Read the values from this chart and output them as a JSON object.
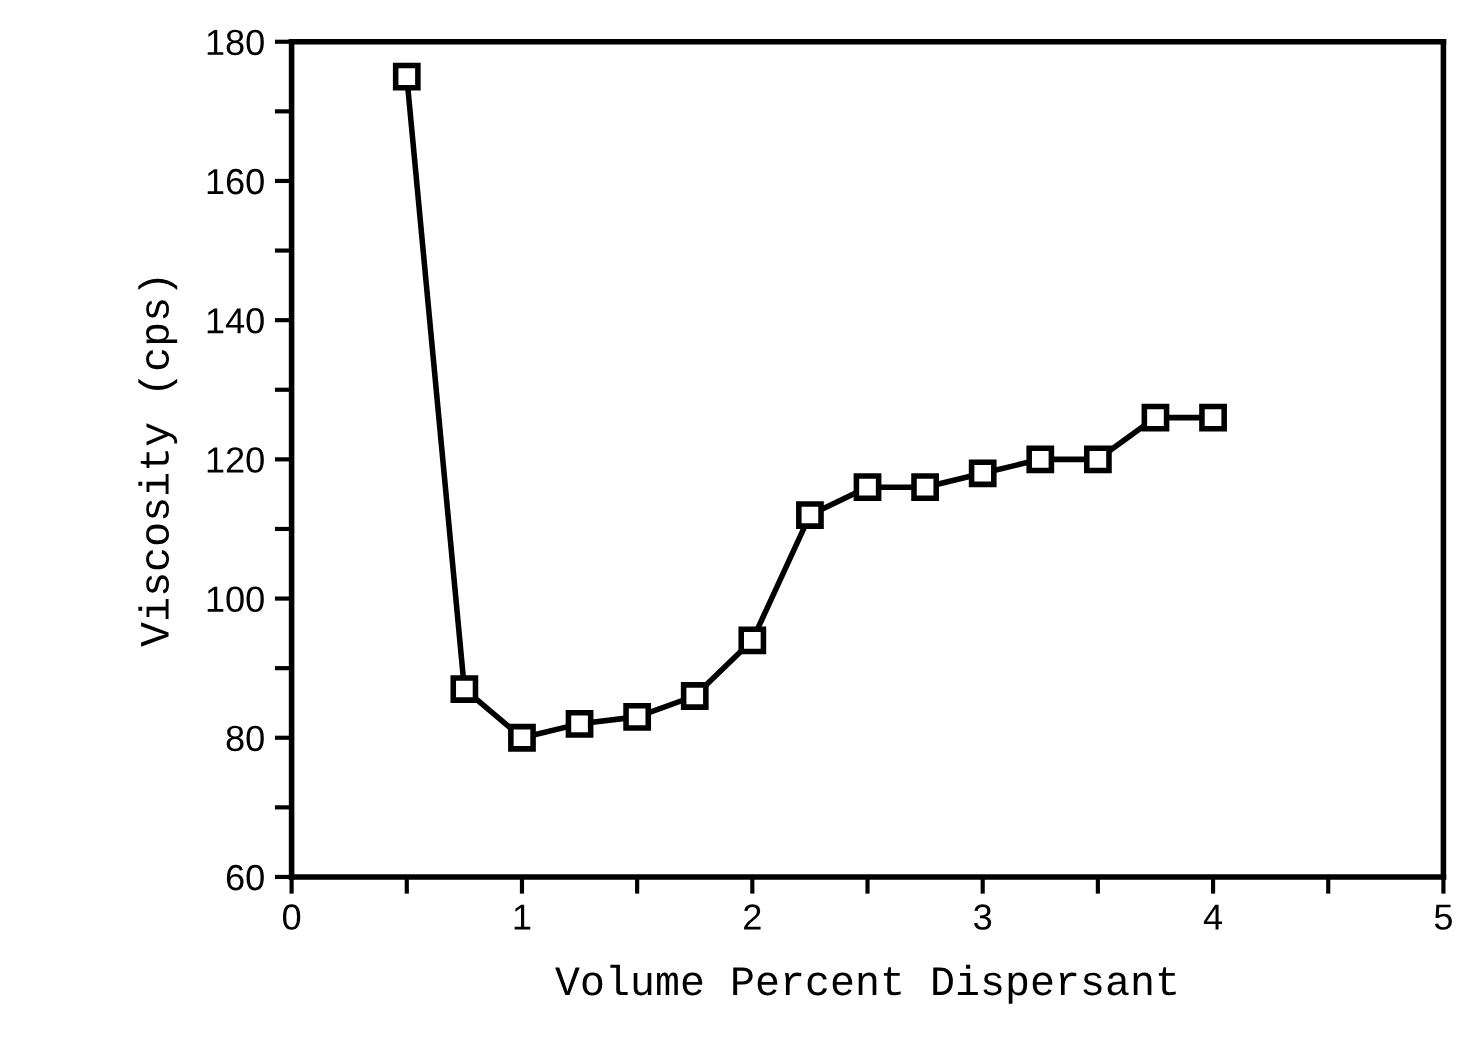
{
  "chart_data": {
    "type": "line",
    "xlabel": "Volume Percent Dispersant",
    "ylabel": "Viscosity (cps)",
    "x": [
      0.5,
      0.75,
      1.0,
      1.25,
      1.5,
      1.75,
      2.0,
      2.25,
      2.5,
      2.75,
      3.0,
      3.25,
      3.5,
      3.75,
      4.0
    ],
    "series": [
      {
        "color": "#000000",
        "values": [
          175,
          87,
          80,
          82,
          83,
          86,
          94,
          112,
          116,
          116,
          118,
          120,
          120,
          126,
          126
        ]
      }
    ],
    "marker": "square",
    "line_style": "solid",
    "grid": false,
    "legend": false,
    "xlim": [
      0,
      5
    ],
    "ylim": [
      60,
      180
    ],
    "xticks": [
      0,
      {
        "value": 0.5,
        "label": null
      },
      1,
      {
        "value": 1.5,
        "label": null
      },
      2,
      {
        "value": 2.5,
        "label": null
      },
      3,
      {
        "value": 3.5,
        "label": null
      },
      4,
      {
        "value": 4.5,
        "label": null
      },
      5
    ],
    "yticks": [
      60,
      {
        "value": 70,
        "label": null
      },
      80,
      {
        "value": 90,
        "label": null
      },
      100,
      {
        "value": 110,
        "label": null
      },
      120,
      {
        "value": 130,
        "label": null
      },
      140,
      {
        "value": 150,
        "label": null
      },
      160,
      {
        "value": 170,
        "label": null
      },
      180
    ]
  }
}
